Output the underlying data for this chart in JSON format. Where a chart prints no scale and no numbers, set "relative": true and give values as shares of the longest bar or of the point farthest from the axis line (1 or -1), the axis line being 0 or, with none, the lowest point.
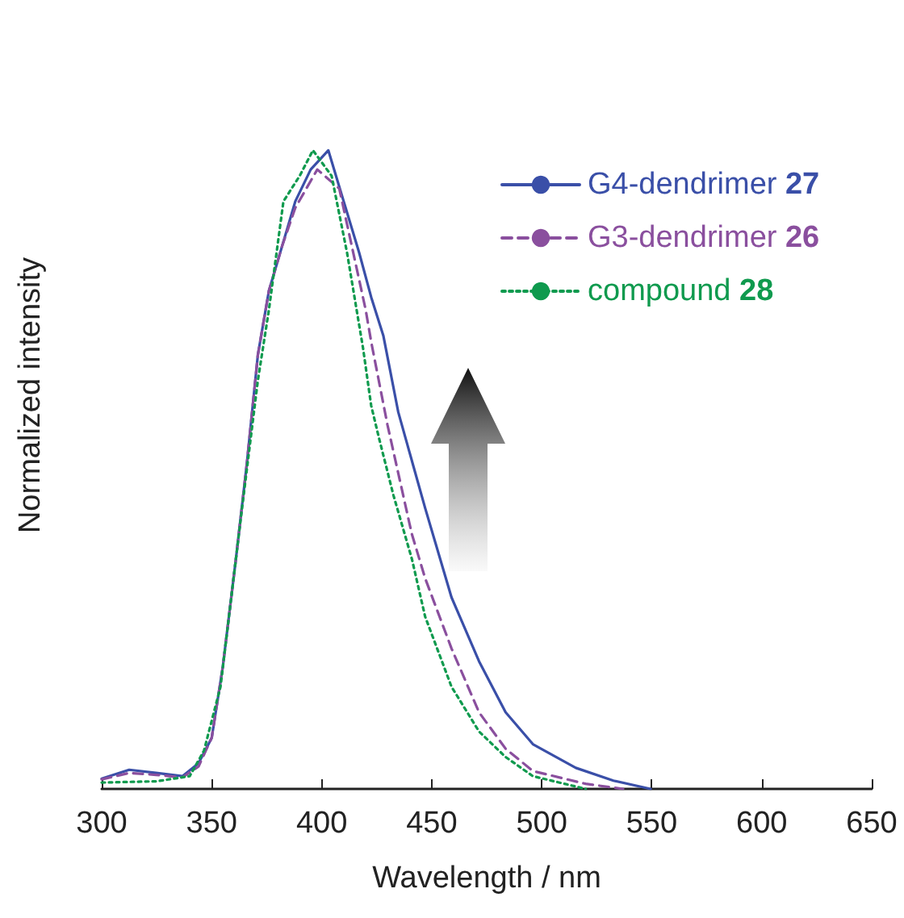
{
  "chart_data": {
    "type": "line",
    "xlabel": "Wavelength / nm",
    "ylabel": "Normalized intensity",
    "relative": true,
    "xlim": [
      300,
      650
    ],
    "xticks": [
      300,
      350,
      400,
      450,
      500,
      550,
      600,
      650
    ],
    "grid": false,
    "legend": "top right",
    "marker": "none",
    "series": [
      {
        "name": "G4-dendrimer 27",
        "color": "#3a4fa8",
        "line_style": "solid",
        "x": [
          300,
          312.5,
          324.7,
          336.7,
          344,
          350,
          355,
          361,
          366,
          371,
          376,
          382,
          388,
          395,
          403,
          410,
          417,
          422.5,
          428,
          434.8,
          447,
          459,
          471.5,
          483.6,
          496,
          515.5,
          532.6,
          549.5
        ],
        "values": [
          0.016,
          0.03,
          0.025,
          0.02,
          0.04,
          0.08,
          0.19,
          0.36,
          0.51,
          0.68,
          0.78,
          0.85,
          0.92,
          0.97,
          1.0,
          0.92,
          0.84,
          0.77,
          0.71,
          0.59,
          0.44,
          0.3,
          0.2,
          0.12,
          0.07,
          0.033,
          0.013,
          0.0
        ]
      },
      {
        "name": "G3-dendrimer 26",
        "color": "#8a4f9e",
        "line_style": "dashed",
        "x": [
          300,
          312.5,
          324.7,
          336.7,
          344,
          350,
          355,
          361,
          366,
          371,
          376,
          382,
          388,
          398,
          408,
          420,
          422.5,
          429.9,
          440.9,
          447,
          459,
          471.5,
          483.6,
          496,
          520,
          537
        ],
        "values": [
          0.015,
          0.025,
          0.022,
          0.018,
          0.035,
          0.08,
          0.19,
          0.36,
          0.51,
          0.68,
          0.78,
          0.85,
          0.91,
          0.97,
          0.94,
          0.75,
          0.7,
          0.57,
          0.4,
          0.33,
          0.22,
          0.12,
          0.063,
          0.028,
          0.008,
          0.0
        ]
      },
      {
        "name": "compound 28",
        "color": "#0f9a4e",
        "line_style": "dotted",
        "x": [
          300,
          325,
          340,
          346.5,
          354,
          363.8,
          371,
          376,
          382.6,
          390,
          396,
          404.5,
          411.5,
          418.8,
          422.5,
          426,
          432.6,
          441,
          447,
          459,
          471.5,
          483.6,
          496,
          520
        ],
        "values": [
          0.01,
          0.012,
          0.02,
          0.06,
          0.16,
          0.44,
          0.64,
          0.75,
          0.92,
          0.96,
          1.0,
          0.96,
          0.84,
          0.69,
          0.6,
          0.55,
          0.46,
          0.36,
          0.27,
          0.16,
          0.09,
          0.05,
          0.02,
          0.0
        ]
      }
    ]
  }
}
